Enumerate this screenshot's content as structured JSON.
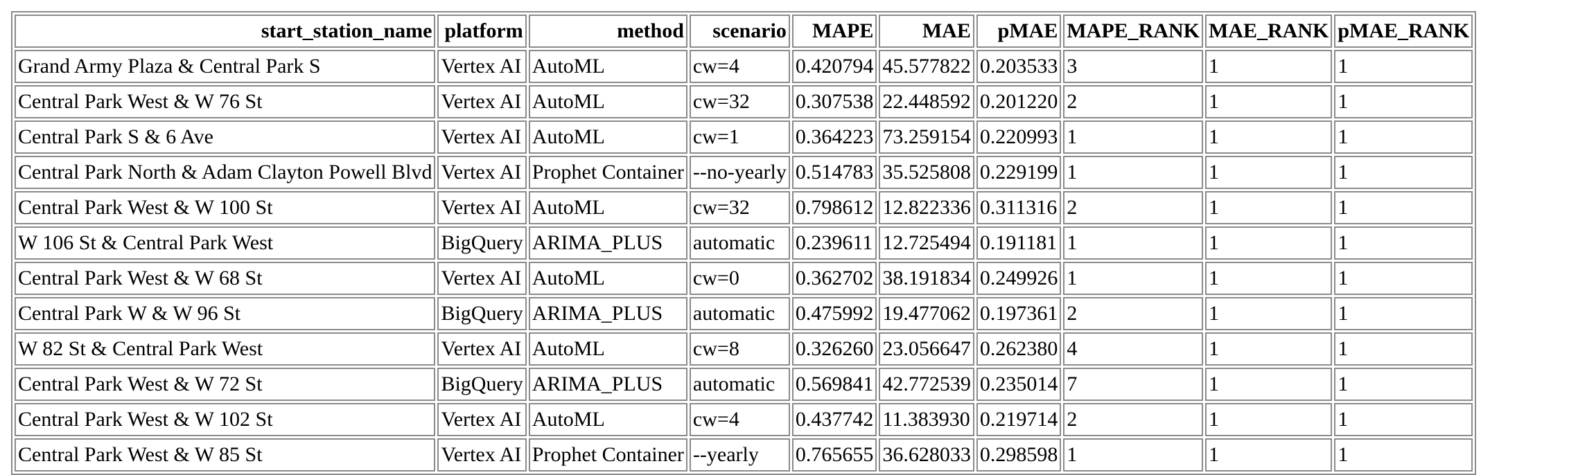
{
  "table": {
    "columns": [
      "start_station_name",
      "platform",
      "method",
      "scenario",
      "MAPE",
      "MAE",
      "pMAE",
      "MAPE_RANK",
      "MAE_RANK",
      "pMAE_RANK"
    ],
    "rows": [
      [
        "Grand Army Plaza & Central Park S",
        "Vertex AI",
        "AutoML",
        "cw=4",
        "0.420794",
        "45.577822",
        "0.203533",
        "3",
        "1",
        "1"
      ],
      [
        "Central Park West & W 76 St",
        "Vertex AI",
        "AutoML",
        "cw=32",
        "0.307538",
        "22.448592",
        "0.201220",
        "2",
        "1",
        "1"
      ],
      [
        "Central Park S & 6 Ave",
        "Vertex AI",
        "AutoML",
        "cw=1",
        "0.364223",
        "73.259154",
        "0.220993",
        "1",
        "1",
        "1"
      ],
      [
        "Central Park North & Adam Clayton Powell Blvd",
        "Vertex AI",
        "Prophet Container",
        "--no-yearly",
        "0.514783",
        "35.525808",
        "0.229199",
        "1",
        "1",
        "1"
      ],
      [
        "Central Park West & W 100 St",
        "Vertex AI",
        "AutoML",
        "cw=32",
        "0.798612",
        "12.822336",
        "0.311316",
        "2",
        "1",
        "1"
      ],
      [
        "W 106 St & Central Park West",
        "BigQuery",
        "ARIMA_PLUS",
        "automatic",
        "0.239611",
        "12.725494",
        "0.191181",
        "1",
        "1",
        "1"
      ],
      [
        "Central Park West & W 68 St",
        "Vertex AI",
        "AutoML",
        "cw=0",
        "0.362702",
        "38.191834",
        "0.249926",
        "1",
        "1",
        "1"
      ],
      [
        "Central Park W & W 96 St",
        "BigQuery",
        "ARIMA_PLUS",
        "automatic",
        "0.475992",
        "19.477062",
        "0.197361",
        "2",
        "1",
        "1"
      ],
      [
        "W 82 St & Central Park West",
        "Vertex AI",
        "AutoML",
        "cw=8",
        "0.326260",
        "23.056647",
        "0.262380",
        "4",
        "1",
        "1"
      ],
      [
        "Central Park West & W 72 St",
        "BigQuery",
        "ARIMA_PLUS",
        "automatic",
        "0.569841",
        "42.772539",
        "0.235014",
        "7",
        "1",
        "1"
      ],
      [
        "Central Park West & W 102 St",
        "Vertex AI",
        "AutoML",
        "cw=4",
        "0.437742",
        "11.383930",
        "0.219714",
        "2",
        "1",
        "1"
      ],
      [
        "Central Park West & W 85 St",
        "Vertex AI",
        "Prophet Container",
        "--yearly",
        "0.765655",
        "36.628033",
        "0.298598",
        "1",
        "1",
        "1"
      ]
    ]
  }
}
